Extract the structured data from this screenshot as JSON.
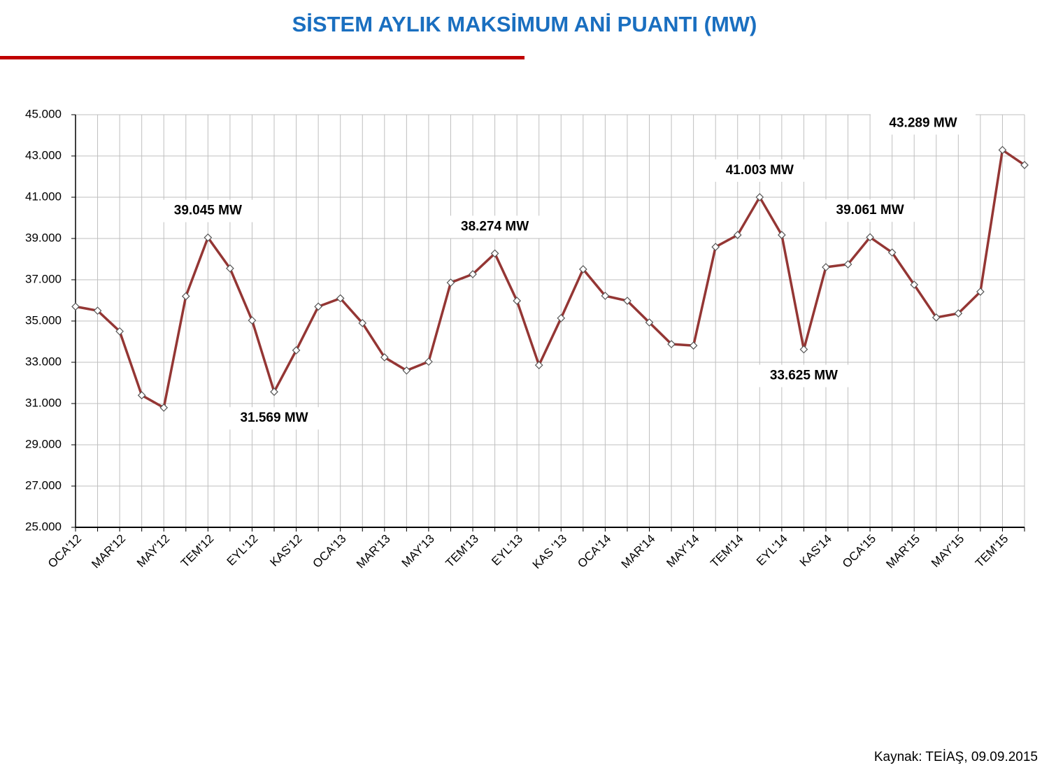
{
  "chart_data": {
    "type": "line",
    "title": "SİSTEM AYLIK MAKSİMUM ANİ PUANTI (MW)",
    "source": "Kaynak: TEİAŞ, 09.09.2015",
    "categories": [
      "OCA'12",
      null,
      "MAR'12",
      null,
      "MAY'12",
      null,
      "TEM'12",
      null,
      "EYL'12",
      null,
      "KAS'12",
      null,
      "OCA'13",
      null,
      "MAR'13",
      null,
      "MAY'13",
      null,
      "TEM'13",
      null,
      "EYL'13",
      null,
      "KAS '13",
      null,
      "OCA'14",
      null,
      "MAR'14",
      null,
      "MAY'14",
      null,
      "TEM'14",
      null,
      "EYL'14",
      null,
      "KAS'14",
      null,
      "OCA'15",
      null,
      "MAR'15",
      null,
      "MAY'15",
      null,
      "TEM'15",
      null
    ],
    "series": [
      {
        "name": "Maksimum ani puant",
        "color": "#943634",
        "values": [
          35700,
          35500,
          34500,
          31400,
          30800,
          36200,
          39045,
          37550,
          35030,
          31569,
          33580,
          35700,
          36100,
          34900,
          33240,
          32600,
          33030,
          36860,
          37270,
          38274,
          35980,
          32860,
          35140,
          37510,
          36220,
          35980,
          34930,
          33880,
          33810,
          38590,
          39170,
          41003,
          39170,
          33625,
          37610,
          37750,
          39061,
          38320,
          36760,
          35170,
          35370,
          36420,
          43289,
          42560
        ],
        "value_labels": [
          null,
          null,
          null,
          null,
          null,
          null,
          "39.045 MW",
          null,
          null,
          "31.569 MW",
          null,
          null,
          null,
          null,
          null,
          null,
          null,
          null,
          null,
          "38.274 MW",
          null,
          null,
          null,
          null,
          null,
          null,
          null,
          null,
          null,
          null,
          null,
          "41.003 MW",
          null,
          "33.625 MW",
          null,
          null,
          "39.061 MW",
          null,
          null,
          null,
          null,
          null,
          "43.289 MW",
          null
        ]
      }
    ],
    "ylim": [
      25000,
      45000
    ],
    "yticks": [
      {
        "value": 25000,
        "label": "25.000"
      },
      {
        "value": 27000,
        "label": "27.000"
      },
      {
        "value": 29000,
        "label": "29.000"
      },
      {
        "value": 31000,
        "label": "31.000"
      },
      {
        "value": 33000,
        "label": "33.000"
      },
      {
        "value": 35000,
        "label": "35.000"
      },
      {
        "value": 37000,
        "label": "37.000"
      },
      {
        "value": 39000,
        "label": "39.000"
      },
      {
        "value": 41000,
        "label": "41.000"
      },
      {
        "value": 43000,
        "label": "43.000"
      },
      {
        "value": 45000,
        "label": "45.000"
      }
    ],
    "grid": true
  }
}
